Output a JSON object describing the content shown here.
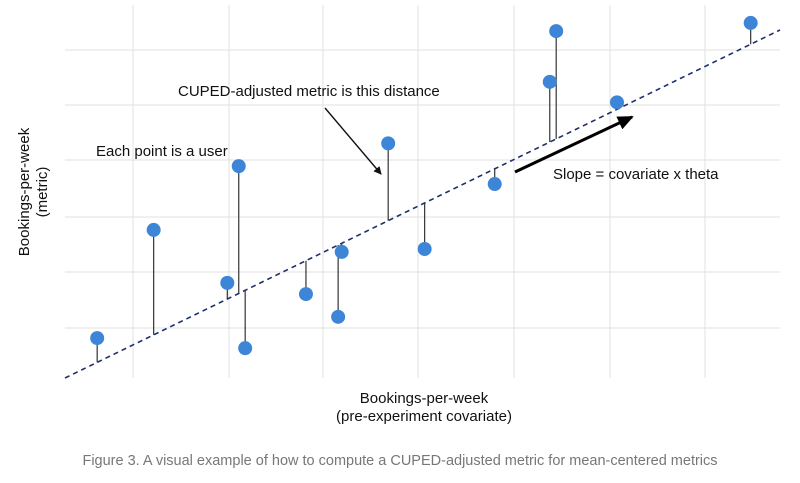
{
  "chart_data": {
    "type": "scatter",
    "x_label": [
      "Bookings-per-week",
      "(pre-experiment covariate)"
    ],
    "y_label": [
      "Bookings-per-week",
      "(metric)"
    ],
    "annotations": [
      "CUPED-adjusted metric is this distance",
      "Each point is a user",
      "Slope = covariate x theta"
    ],
    "caption": "Figure 3. A visual example of how to compute a CUPED-adjusted metric for mean-centered metrics",
    "xlim": [
      0,
      100
    ],
    "ylim": [
      0,
      100
    ],
    "x": [
      4.5,
      12.4,
      22.7,
      24.3,
      25.2,
      33.7,
      38.2,
      38.7,
      45.2,
      50.3,
      60.1,
      67.8,
      68.7,
      77.2,
      95.9
    ],
    "values": [
      10.7,
      39.7,
      25.5,
      56.8,
      8.0,
      22.5,
      16.4,
      33.8,
      62.9,
      34.6,
      52.0,
      79.4,
      93.0,
      73.9,
      95.2
    ],
    "color": "#3d85d6",
    "trend_line": {
      "x": [
        0,
        100
      ],
      "y": [
        0,
        93.3
      ],
      "color": "#1f2f6e"
    }
  }
}
